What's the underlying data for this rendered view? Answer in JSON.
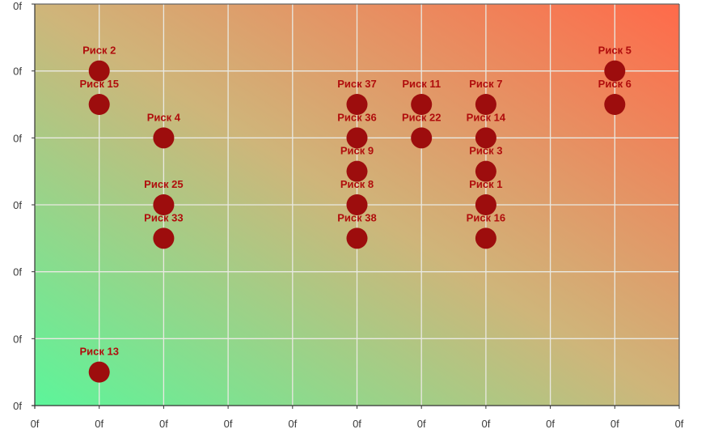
{
  "chart_data": {
    "type": "scatter",
    "title": "",
    "xlabel": "",
    "ylabel": "",
    "xlim": [
      0,
      10
    ],
    "ylim": [
      0,
      6
    ],
    "x_ticks": [
      0,
      1,
      2,
      3,
      4,
      5,
      6,
      7,
      8,
      9,
      10
    ],
    "y_ticks": [
      0,
      1,
      2,
      3,
      4,
      5,
      6
    ],
    "x_tick_labels": [
      "0f",
      "0f",
      "0f",
      "0f",
      "0f",
      "0f",
      "0f",
      "0f",
      "0f",
      "0f",
      "0f"
    ],
    "y_tick_labels": [
      "0f",
      "0f",
      "0f",
      "0f",
      "0f",
      "0f",
      "0f"
    ],
    "grid": true,
    "background_gradient": {
      "bottom_left": "#5cf59a",
      "middle": "#cfb57a",
      "top_right": "#ff6a4a"
    },
    "point_color": "#9d0d0d",
    "label_color": "#b00d0d",
    "points": [
      {
        "label": "Риск 2",
        "x": 1,
        "y": 5
      },
      {
        "label": "Риск 15",
        "x": 1,
        "y": 4.5
      },
      {
        "label": "Риск 13",
        "x": 1,
        "y": 0.5
      },
      {
        "label": "Риск 4",
        "x": 2,
        "y": 4
      },
      {
        "label": "Риск 25",
        "x": 2,
        "y": 3
      },
      {
        "label": "Риск 33",
        "x": 2,
        "y": 2.5
      },
      {
        "label": "Риск 37",
        "x": 5,
        "y": 4.5
      },
      {
        "label": "Риск 36",
        "x": 5,
        "y": 4
      },
      {
        "label": "Риск 9",
        "x": 5,
        "y": 3.5
      },
      {
        "label": "Риск 8",
        "x": 5,
        "y": 3
      },
      {
        "label": "Риск 38",
        "x": 5,
        "y": 2.5
      },
      {
        "label": "Риск 11",
        "x": 6,
        "y": 4.5
      },
      {
        "label": "Риск 22",
        "x": 6,
        "y": 4
      },
      {
        "label": "Риск 7",
        "x": 7,
        "y": 4.5
      },
      {
        "label": "Риск 14",
        "x": 7,
        "y": 4
      },
      {
        "label": "Риск 3",
        "x": 7,
        "y": 3.5
      },
      {
        "label": "Риск 1",
        "x": 7,
        "y": 3
      },
      {
        "label": "Риск 16",
        "x": 7,
        "y": 2.5
      },
      {
        "label": "Риск 5",
        "x": 9,
        "y": 5
      },
      {
        "label": "Риск 6",
        "x": 9,
        "y": 4.5
      }
    ]
  }
}
